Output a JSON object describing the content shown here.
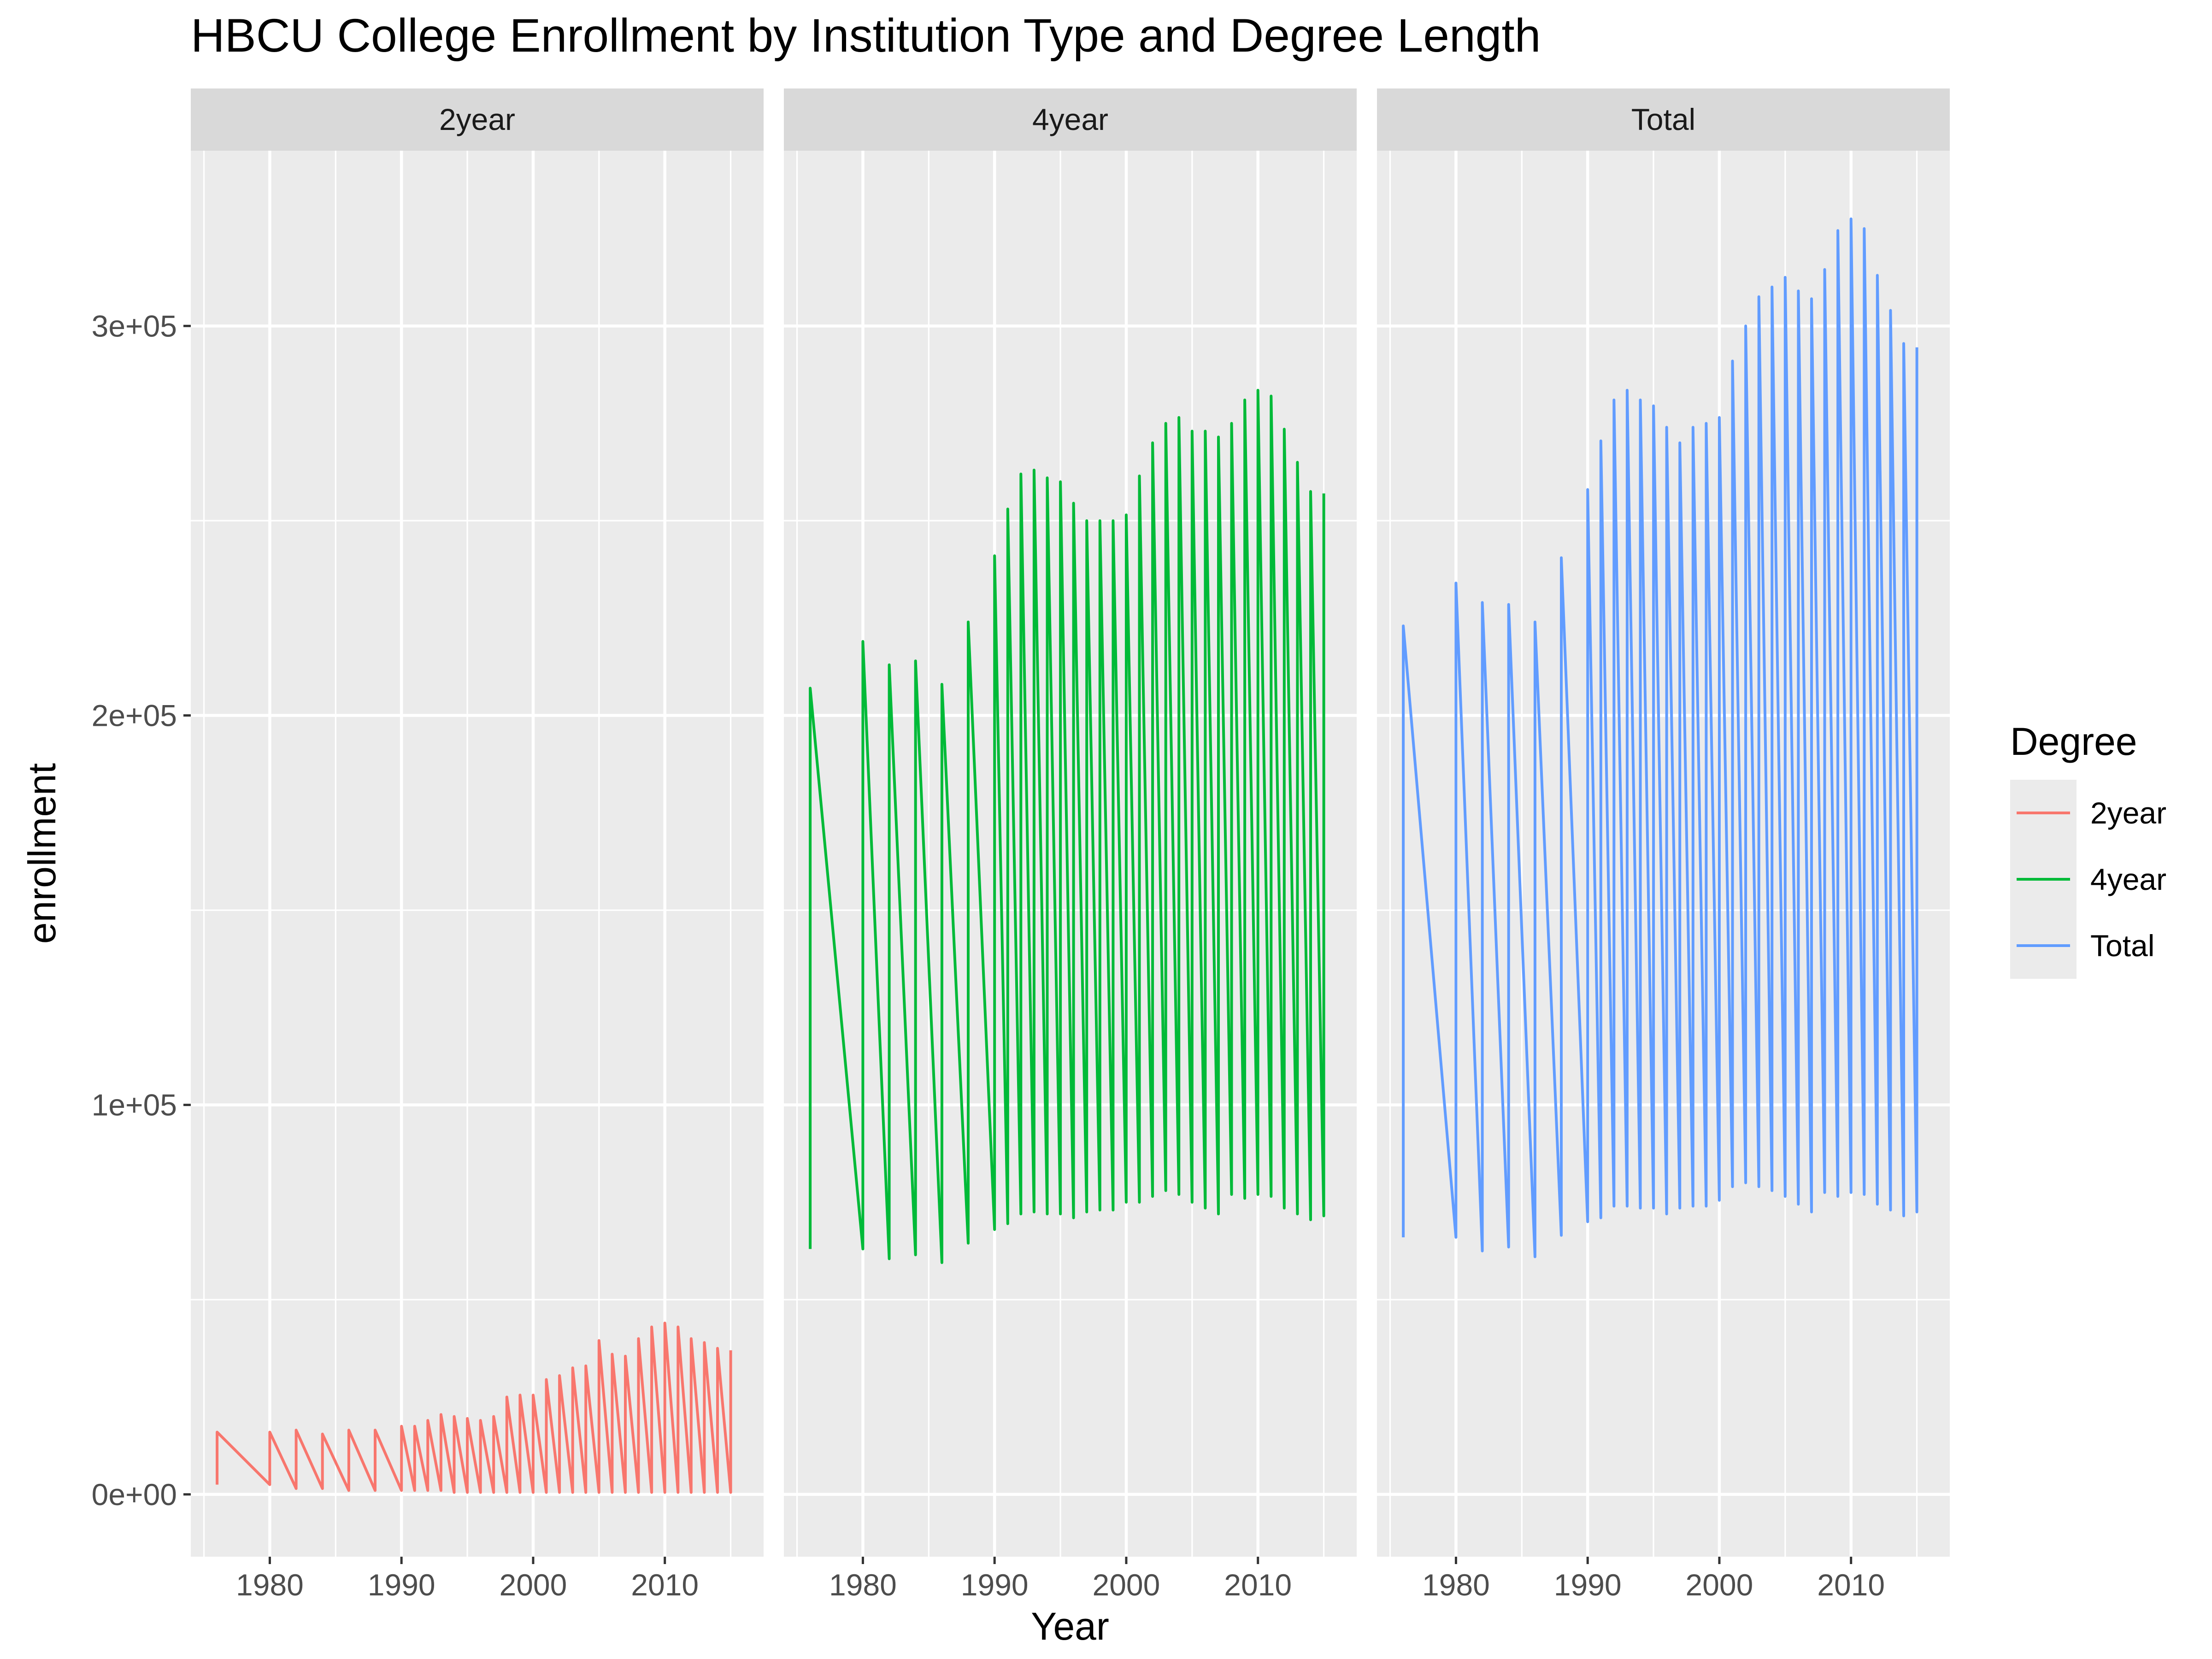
{
  "chart_data": {
    "type": "line",
    "title": "HBCU College Enrollment by Institution Type and Degree Length",
    "xlabel": "Year",
    "ylabel": "enrollment",
    "xlim": [
      1974,
      2017.5
    ],
    "ylim": [
      -16000,
      345000
    ],
    "x_ticks": [
      1980,
      1990,
      2000,
      2010
    ],
    "y_ticks": [
      0,
      100000,
      200000,
      300000
    ],
    "y_tick_labels": [
      "0e+00",
      "1e+05",
      "2e+05",
      "3e+05"
    ],
    "grid": true,
    "legend": {
      "title": "Degree",
      "position": "right"
    },
    "x": [
      1976,
      1980,
      1982,
      1984,
      1986,
      1988,
      1990,
      1991,
      1992,
      1993,
      1994,
      1995,
      1996,
      1997,
      1998,
      1999,
      2000,
      2001,
      2002,
      2003,
      2004,
      2005,
      2006,
      2007,
      2008,
      2009,
      2010,
      2011,
      2012,
      2013,
      2014,
      2015
    ],
    "panels": [
      {
        "name": "2year",
        "color": "#F8766D",
        "low": [
          2500,
          2500,
          1500,
          1500,
          1000,
          1000,
          1000,
          1000,
          1000,
          1000,
          500,
          500,
          500,
          500,
          500,
          500,
          500,
          500,
          500,
          500,
          500,
          500,
          500,
          500,
          500,
          500,
          500,
          500,
          500,
          500,
          500,
          500
        ],
        "high": [
          16000,
          16000,
          16500,
          15500,
          16500,
          16500,
          17500,
          17500,
          19000,
          20500,
          20000,
          19500,
          19000,
          20000,
          25000,
          25500,
          25500,
          29500,
          30500,
          32500,
          33000,
          39500,
          36000,
          35500,
          40000,
          43000,
          44000,
          43000,
          40000,
          39000,
          37500,
          37000
        ]
      },
      {
        "name": "4year",
        "color": "#00BA38",
        "low": [
          63000,
          63000,
          60500,
          61500,
          59500,
          64500,
          68000,
          69500,
          72000,
          72500,
          72000,
          72000,
          71000,
          72500,
          73000,
          73000,
          75000,
          75000,
          76500,
          78000,
          77000,
          75000,
          73500,
          72000,
          77000,
          76000,
          77000,
          76500,
          73500,
          72000,
          70500,
          71500
        ],
        "high": [
          207000,
          219000,
          213000,
          214000,
          208000,
          224000,
          241000,
          253000,
          262000,
          263000,
          261000,
          260000,
          254500,
          250000,
          250000,
          250000,
          251500,
          261500,
          270000,
          275000,
          276500,
          273000,
          273000,
          271500,
          275000,
          281000,
          283500,
          282000,
          273500,
          265000,
          257500,
          257000
        ]
      },
      {
        "name": "Total",
        "color": "#619CFF",
        "low": [
          66000,
          66000,
          62500,
          63500,
          61000,
          66500,
          70000,
          71000,
          74000,
          74000,
          73500,
          73500,
          72000,
          73500,
          74000,
          74000,
          75500,
          79000,
          80000,
          79000,
          78000,
          76500,
          74500,
          72500,
          77500,
          76500,
          77500,
          77000,
          74500,
          73000,
          71500,
          72500
        ],
        "high": [
          223000,
          234000,
          229000,
          228500,
          224000,
          240500,
          258000,
          270500,
          281000,
          283500,
          281000,
          279500,
          274000,
          270000,
          274000,
          275000,
          276500,
          291000,
          300000,
          307500,
          310000,
          312500,
          309000,
          307000,
          314500,
          324500,
          327500,
          325000,
          313000,
          304000,
          295500,
          294500
        ]
      }
    ]
  }
}
